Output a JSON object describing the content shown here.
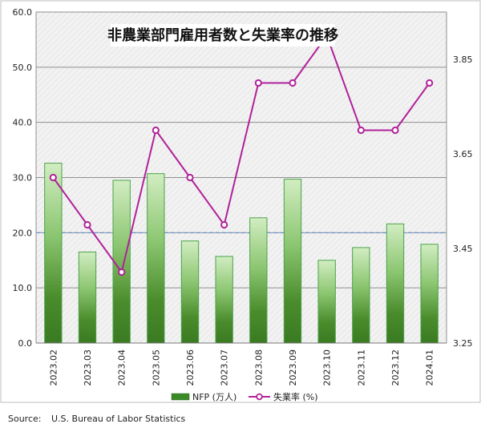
{
  "chart_data": {
    "type": "bar+line",
    "title": "非農業部門雇用者数と失業率の推移",
    "categories": [
      "2023.02",
      "2023.03",
      "2023.04",
      "2023.05",
      "2023.06",
      "2023.07",
      "2023.08",
      "2023.09",
      "2023.10",
      "2023.11",
      "2023.12",
      "2024.01"
    ],
    "series": [
      {
        "name": "NFP (万人)",
        "type": "bar",
        "axis": "left",
        "values": [
          32.6,
          16.5,
          29.5,
          30.7,
          18.5,
          15.7,
          22.7,
          29.7,
          15.0,
          17.3,
          21.6,
          17.9
        ]
      },
      {
        "name": "失業率 (%)",
        "type": "line",
        "axis": "right",
        "values": [
          3.6,
          3.5,
          3.4,
          3.7,
          3.6,
          3.5,
          3.8,
          3.8,
          3.9,
          3.7,
          3.7,
          3.8
        ]
      }
    ],
    "y_left": {
      "ylim": [
        0,
        60
      ],
      "ticks": [
        "0.0",
        "10.0",
        "20.0",
        "30.0",
        "40.0",
        "50.0",
        "60.0"
      ]
    },
    "y_right": {
      "ylim": [
        3.25,
        3.95
      ],
      "ticks": [
        "3.25",
        "3.45",
        "3.65",
        "3.85"
      ]
    },
    "reference_line": {
      "axis": "left",
      "value": 20,
      "style": "dashed"
    },
    "grid": true,
    "legend_position": "bottom-center",
    "colors": {
      "bar_dark": "#3a7a22",
      "bar_light": "#c8e7b6",
      "bar_edge": "#4aa34a",
      "line": "#b0229a",
      "ref_line": "#5b8fd6",
      "plot_bg": "#f1f1f1"
    }
  },
  "source": {
    "label": "Source:",
    "text": "U.S. Bureau of Labor Statistics"
  }
}
